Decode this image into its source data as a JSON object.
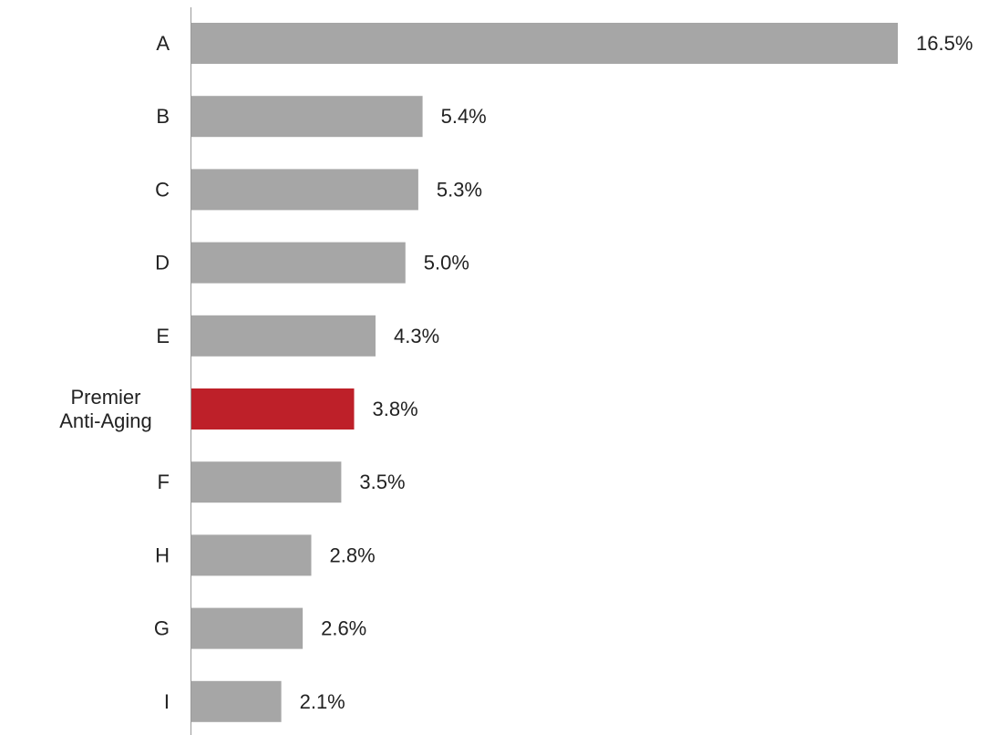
{
  "chart_data": {
    "type": "bar",
    "orientation": "horizontal",
    "categories": [
      "A",
      "B",
      "C",
      "D",
      "E",
      "Premier Anti-Aging",
      "F",
      "H",
      "G",
      "I"
    ],
    "values": [
      16.5,
      5.4,
      5.3,
      5.0,
      4.3,
      3.8,
      3.5,
      2.8,
      2.6,
      2.1
    ],
    "value_labels": [
      "16.5%",
      "5.4%",
      "5.3%",
      "5.0%",
      "4.3%",
      "3.8%",
      "3.5%",
      "2.8%",
      "2.6%",
      "2.1%"
    ],
    "highlight_category": "Premier Anti-Aging",
    "title": "",
    "xlabel": "",
    "ylabel": "",
    "xlim": [
      0,
      16.5
    ],
    "grid": false,
    "legend": "none",
    "colors": {
      "bar": "#a6a6a6",
      "highlight": "#be2029",
      "axis": "#999999",
      "text": "#222222"
    }
  }
}
